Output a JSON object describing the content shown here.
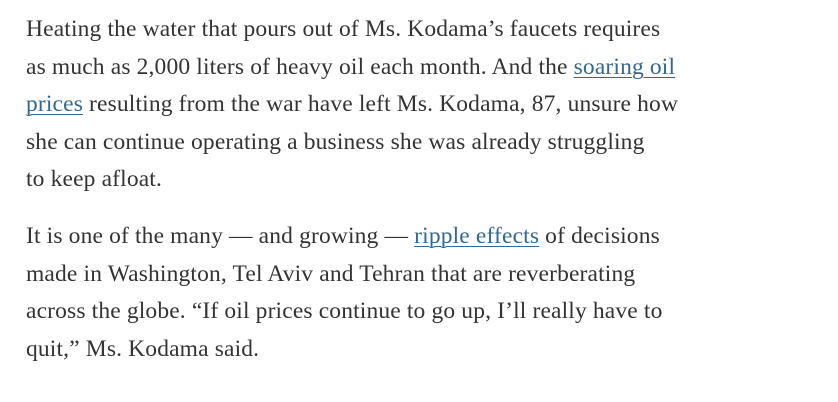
{
  "article": {
    "paragraphs": [
      {
        "lines": [
          [
            {
              "text": "Heating the water that pours out of Ms. Kodama’s faucets requires"
            }
          ],
          [
            {
              "text": "as much as 2,000 liters of heavy oil each month. And the "
            },
            {
              "text": "soaring oil",
              "link": true
            }
          ],
          [
            {
              "text": "prices",
              "link": true
            },
            {
              "text": " resulting from the war have left Ms. Kodama, 87, unsure how"
            }
          ],
          [
            {
              "text": "she can continue operating a business she was already struggling"
            }
          ],
          [
            {
              "text": "to keep afloat."
            }
          ]
        ]
      },
      {
        "lines": [
          [
            {
              "text": "It is one of the many — and growing — "
            },
            {
              "text": "ripple effects",
              "link": true
            },
            {
              "text": " of decisions"
            }
          ],
          [
            {
              "text": "made in Washington, Tel Aviv and Tehran that are reverberating"
            }
          ],
          [
            {
              "text": "across the globe. “If oil prices continue to go up, I’ll really have to"
            }
          ],
          [
            {
              "text": "quit,” Ms. Kodama said."
            }
          ]
        ]
      }
    ]
  }
}
